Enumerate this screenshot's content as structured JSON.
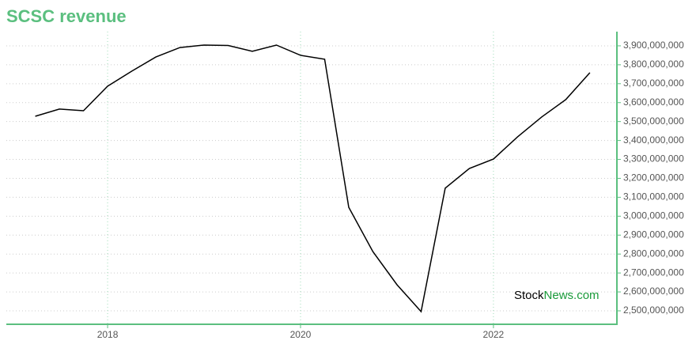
{
  "chart_data": {
    "type": "line",
    "title": "SCSC revenue",
    "x": [
      2017.25,
      2017.5,
      2017.75,
      2018.0,
      2018.25,
      2018.5,
      2018.75,
      2019.0,
      2019.25,
      2019.5,
      2019.75,
      2020.0,
      2020.25,
      2020.5,
      2020.75,
      2021.0,
      2021.25,
      2021.5,
      2021.75,
      2022.0,
      2022.25,
      2022.5,
      2022.75,
      2023.0
    ],
    "series": [
      {
        "name": "Revenue",
        "color": "#000000",
        "values": [
          3528000000,
          3566000000,
          3557000000,
          3687000000,
          3766000000,
          3841000000,
          3891000000,
          3904000000,
          3902000000,
          3871000000,
          3904000000,
          3850000000,
          3829000000,
          3047000000,
          2813000000,
          2638000000,
          2496000000,
          3148000000,
          3252000000,
          3302000000,
          3419000000,
          3524000000,
          3616000000,
          3758000000
        ]
      }
    ],
    "xlim": [
      2016.95,
      2023.28
    ],
    "xticks": [
      2018,
      2020,
      2022
    ],
    "ylim": [
      2429000000,
      3975000000
    ],
    "yticks": [
      {
        "value": 2500000000,
        "label": "2,500,000,000"
      },
      {
        "value": 2600000000,
        "label": "2,600,000,000"
      },
      {
        "value": 2700000000,
        "label": "2,700,000,000"
      },
      {
        "value": 2800000000,
        "label": "2,800,000,000"
      },
      {
        "value": 2900000000,
        "label": "2,900,000,000"
      },
      {
        "value": 3000000000,
        "label": "3,000,000,000"
      },
      {
        "value": 3100000000,
        "label": "3,100,000,000"
      },
      {
        "value": 3200000000,
        "label": "3,200,000,000"
      },
      {
        "value": 3300000000,
        "label": "3,300,000,000"
      },
      {
        "value": 3400000000,
        "label": "3,400,000,000"
      },
      {
        "value": 3500000000,
        "label": "3,500,000,000"
      },
      {
        "value": 3600000000,
        "label": "3,600,000,000"
      },
      {
        "value": 3700000000,
        "label": "3,700,000,000"
      },
      {
        "value": 3800000000,
        "label": "3,800,000,000"
      },
      {
        "value": 3900000000,
        "label": "3,900,000,000"
      }
    ],
    "grid": true,
    "watermark": [
      "Stock",
      "News.com"
    ]
  }
}
